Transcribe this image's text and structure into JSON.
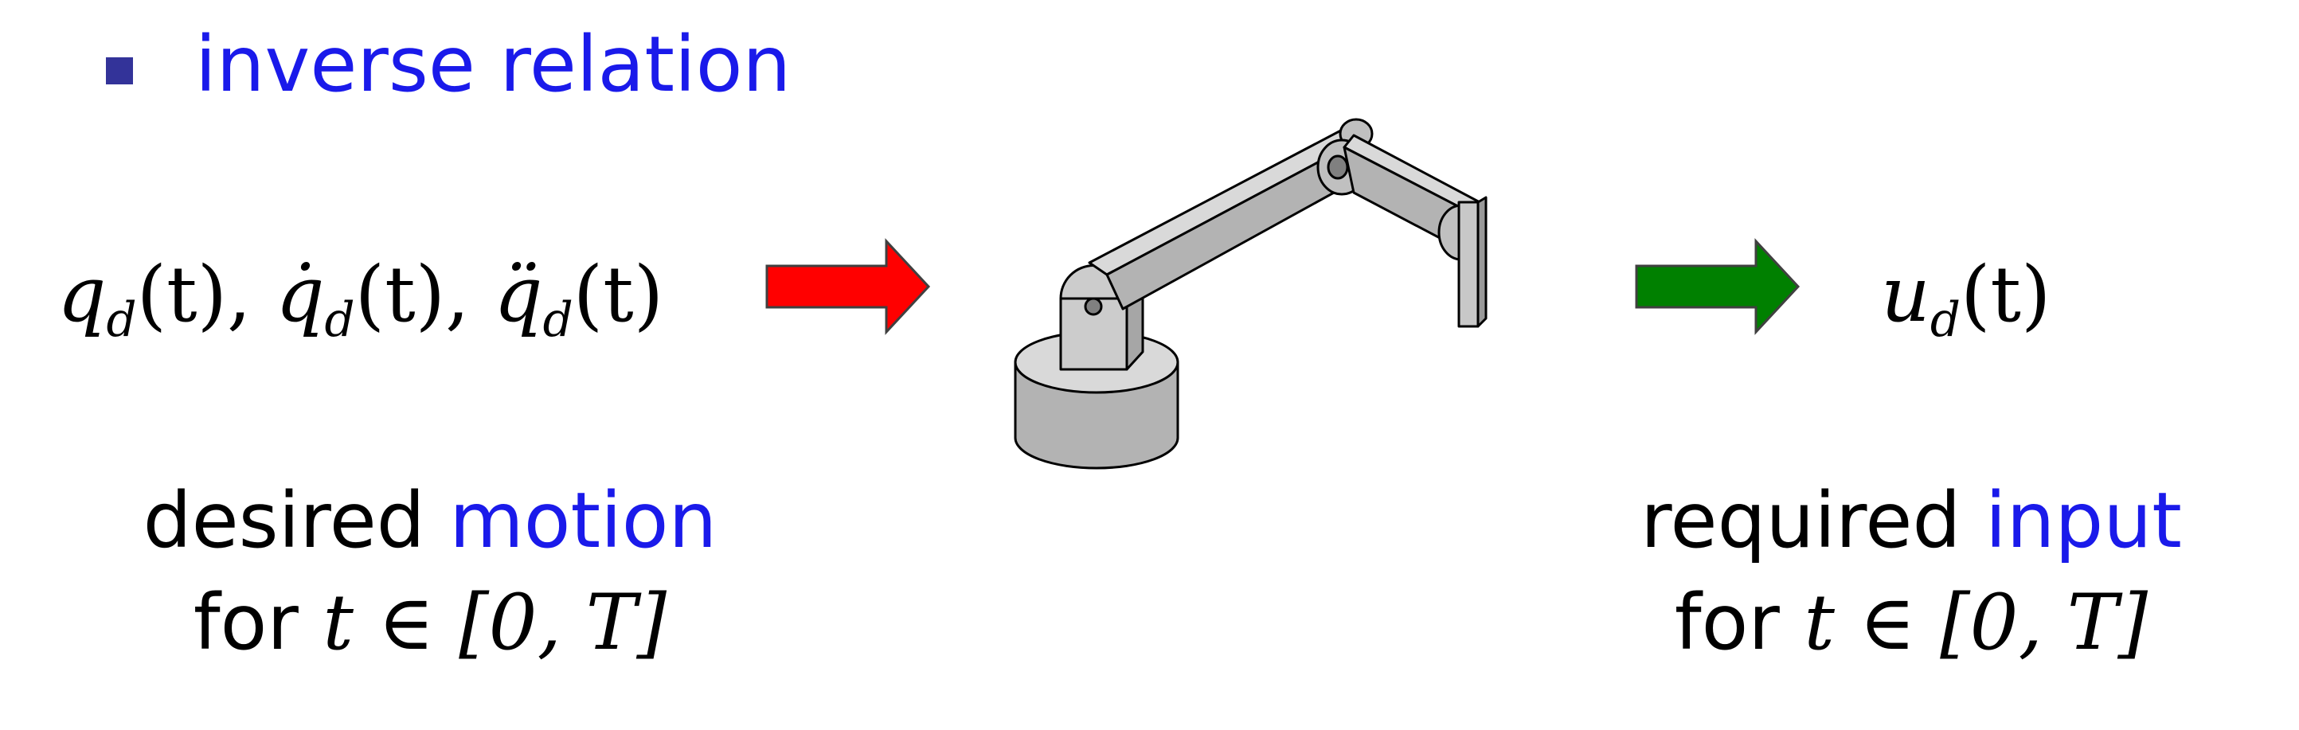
{
  "heading": "inverse relation",
  "left": {
    "symbols": {
      "q": "q",
      "d": "d",
      "t": "(t)",
      "sep": ",",
      "qdot": "q̇",
      "qddot": "q̈"
    },
    "caption_word1": "desired",
    "caption_word2": "motion",
    "caption_for": "for",
    "caption_interval": "t ∈ [0, T]"
  },
  "right": {
    "symbols": {
      "u": "u",
      "d": "d",
      "t": "(t)"
    },
    "caption_word1": "required",
    "caption_word2": "input",
    "caption_for": "for",
    "caption_interval": "t ∈ [0, T]"
  },
  "colors": {
    "accent_text": "#1a1aea",
    "bullet": "#333399",
    "arrow_in": "#ff0000",
    "arrow_out": "#008000",
    "robot_fill": "#b3b3b3",
    "robot_light": "#d9d9d9"
  },
  "icons": {
    "robot": "robot-arm-icon",
    "arrow_in": "arrow-right-icon",
    "arrow_out": "arrow-right-icon"
  }
}
